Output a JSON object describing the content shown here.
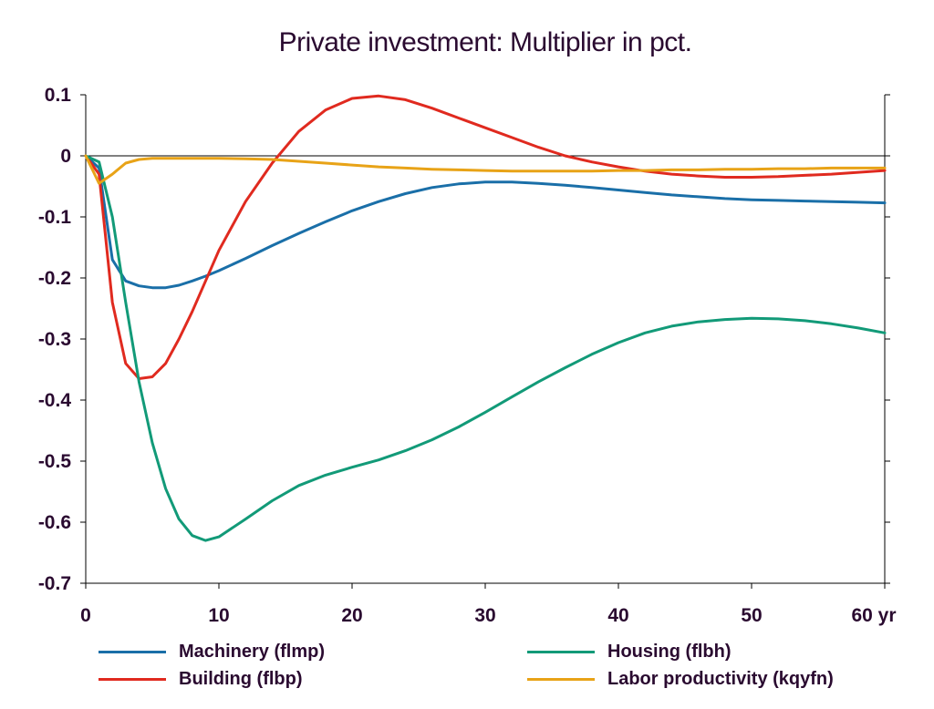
{
  "chart_data": {
    "type": "line",
    "title": "Private investment: Multiplier in pct.",
    "xlabel": "",
    "ylabel": "",
    "x_unit_label": "yr",
    "xlim": [
      0,
      60
    ],
    "ylim": [
      -0.7,
      0.1
    ],
    "x_ticks": [
      0,
      10,
      20,
      30,
      40,
      50,
      60
    ],
    "x_tick_labels": [
      "0",
      "10",
      "20",
      "30",
      "40",
      "50",
      "60 yr"
    ],
    "y_ticks": [
      0.1,
      0,
      -0.1,
      -0.2,
      -0.3,
      -0.4,
      -0.5,
      -0.6,
      -0.7
    ],
    "y_tick_labels": [
      "0.1",
      "0",
      "-0.1",
      "-0.2",
      "-0.3",
      "-0.4",
      "-0.5",
      "-0.6",
      "-0.7"
    ],
    "grid": false,
    "zero_line": true,
    "legend_position": "bottom",
    "x": [
      0,
      1,
      2,
      3,
      4,
      5,
      6,
      7,
      8,
      9,
      10,
      12,
      14,
      16,
      18,
      20,
      22,
      24,
      26,
      28,
      30,
      32,
      34,
      36,
      38,
      40,
      42,
      44,
      46,
      48,
      50,
      52,
      54,
      56,
      58,
      60
    ],
    "series": [
      {
        "name": "Machinery (flmp)",
        "color": "#1a6fa8",
        "values": [
          0,
          -0.02,
          -0.17,
          -0.205,
          -0.213,
          -0.216,
          -0.216,
          -0.212,
          -0.205,
          -0.197,
          -0.188,
          -0.168,
          -0.147,
          -0.127,
          -0.108,
          -0.09,
          -0.075,
          -0.062,
          -0.052,
          -0.046,
          -0.043,
          -0.043,
          -0.045,
          -0.048,
          -0.052,
          -0.056,
          -0.06,
          -0.064,
          -0.067,
          -0.07,
          -0.072,
          -0.073,
          -0.074,
          -0.075,
          -0.076,
          -0.077
        ]
      },
      {
        "name": "Building (flbp)",
        "color": "#e02a1f",
        "values": [
          0,
          -0.03,
          -0.24,
          -0.34,
          -0.365,
          -0.362,
          -0.34,
          -0.3,
          -0.255,
          -0.205,
          -0.155,
          -0.075,
          -0.012,
          0.04,
          0.075,
          0.094,
          0.098,
          0.092,
          0.078,
          0.062,
          0.046,
          0.03,
          0.014,
          0,
          -0.01,
          -0.018,
          -0.025,
          -0.03,
          -0.033,
          -0.035,
          -0.035,
          -0.034,
          -0.032,
          -0.03,
          -0.027,
          -0.024
        ]
      },
      {
        "name": "Housing (flbh)",
        "color": "#129a78",
        "values": [
          0,
          -0.01,
          -0.1,
          -0.24,
          -0.37,
          -0.47,
          -0.545,
          -0.595,
          -0.622,
          -0.63,
          -0.624,
          -0.595,
          -0.565,
          -0.54,
          -0.523,
          -0.51,
          -0.498,
          -0.483,
          -0.465,
          -0.444,
          -0.42,
          -0.395,
          -0.37,
          -0.347,
          -0.325,
          -0.306,
          -0.29,
          -0.279,
          -0.272,
          -0.268,
          -0.266,
          -0.267,
          -0.27,
          -0.275,
          -0.282,
          -0.29
        ]
      },
      {
        "name": "Labor productivity (kqyfn)",
        "color": "#e8a317",
        "values": [
          0,
          -0.045,
          -0.03,
          -0.012,
          -0.006,
          -0.004,
          -0.004,
          -0.004,
          -0.004,
          -0.004,
          -0.004,
          -0.005,
          -0.006,
          -0.009,
          -0.012,
          -0.015,
          -0.018,
          -0.02,
          -0.022,
          -0.023,
          -0.024,
          -0.025,
          -0.025,
          -0.025,
          -0.025,
          -0.024,
          -0.024,
          -0.023,
          -0.023,
          -0.022,
          -0.022,
          -0.021,
          -0.021,
          -0.02,
          -0.02,
          -0.02
        ]
      }
    ]
  }
}
